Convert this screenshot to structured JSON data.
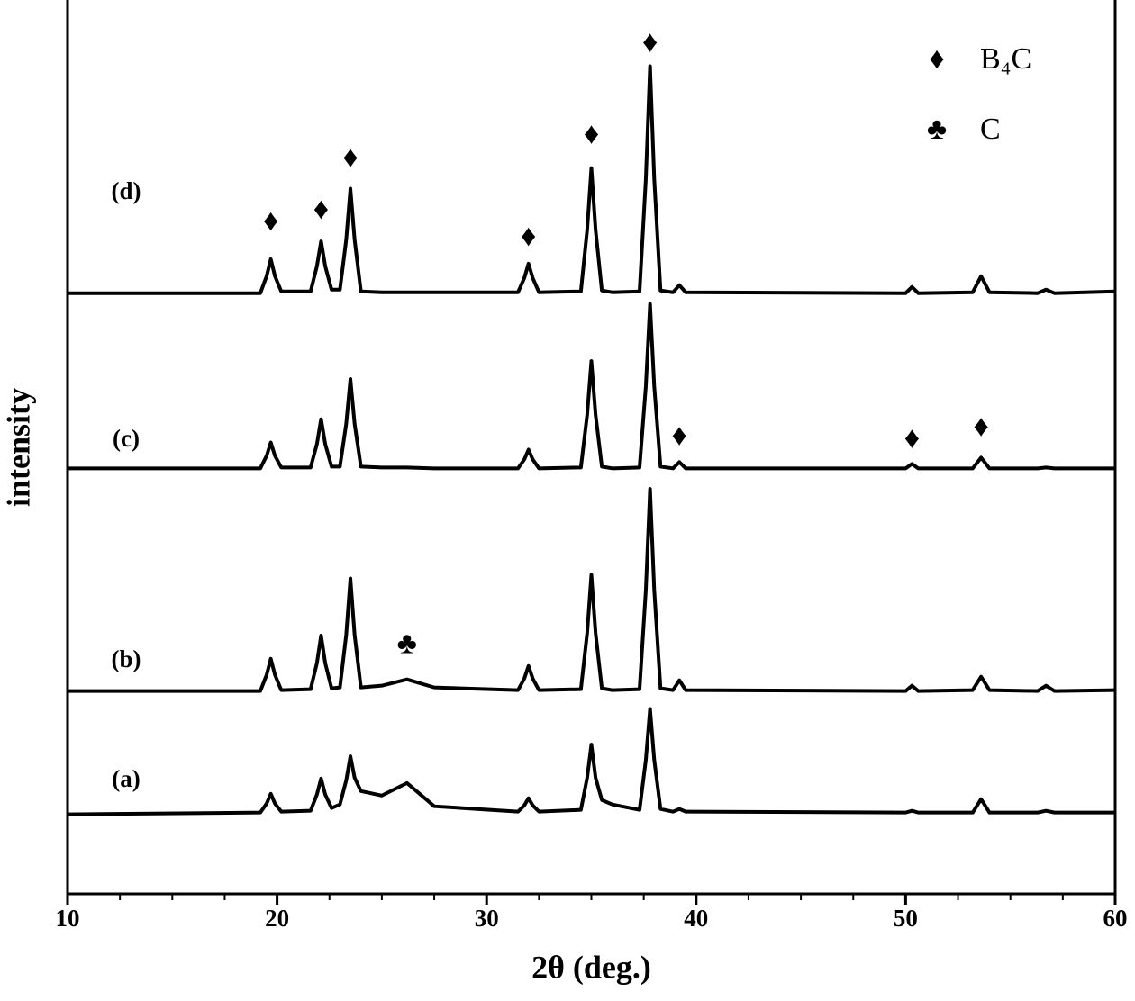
{
  "chart_data": {
    "type": "line",
    "x_label": "2θ (deg.)",
    "y_label": "intensity",
    "xlim": [
      10,
      60
    ],
    "xticks": [
      10,
      20,
      30,
      40,
      50,
      60
    ],
    "xminorticks": [
      12.5,
      15,
      17.5,
      22.5,
      25,
      27.5,
      32.5,
      35,
      37.5,
      42.5,
      45,
      47.5,
      52.5,
      55,
      57.5
    ],
    "ylim": [
      0,
      100
    ],
    "x": [
      10,
      19.2,
      19.5,
      19.7,
      19.9,
      20.2,
      21.6,
      21.9,
      22.1,
      22.3,
      22.6,
      23.0,
      23.3,
      23.5,
      23.7,
      24.0,
      25.0,
      26.2,
      27.5,
      31.5,
      31.8,
      32.0,
      32.2,
      32.5,
      34.5,
      34.8,
      35.0,
      35.2,
      35.5,
      36.0,
      37.3,
      37.6,
      37.8,
      38.0,
      38.3,
      38.9,
      39.2,
      39.5,
      50.0,
      50.3,
      50.6,
      53.2,
      53.6,
      54.0,
      56.3,
      56.7,
      57.1,
      60
    ],
    "series": [
      {
        "name": "(a)",
        "color": "#000000",
        "values": [
          8.9,
          9.1,
          10.1,
          11.2,
          10.1,
          9.2,
          9.3,
          11.1,
          12.9,
          11.1,
          9.6,
          10.0,
          12.7,
          15.4,
          13.0,
          11.5,
          11.0,
          12.4,
          9.8,
          9.2,
          9.9,
          10.7,
          9.9,
          9.2,
          9.4,
          13.0,
          16.7,
          13.0,
          10.5,
          10.0,
          9.4,
          15.0,
          20.7,
          15.0,
          9.5,
          9.2,
          9.5,
          9.2,
          9.1,
          9.3,
          9.1,
          9.1,
          10.6,
          9.1,
          9.1,
          9.3,
          9.1,
          9.1
        ]
      },
      {
        "name": "(b)",
        "color": "#000000",
        "values": [
          22.7,
          22.7,
          24.5,
          26.3,
          24.5,
          22.8,
          22.9,
          25.8,
          28.9,
          25.8,
          23.0,
          23.1,
          29.0,
          35.3,
          29.0,
          23.1,
          23.3,
          24.0,
          23.1,
          22.8,
          24.1,
          25.5,
          24.1,
          22.8,
          22.9,
          29.2,
          35.7,
          29.2,
          23.0,
          22.8,
          22.9,
          34.0,
          45.3,
          34.0,
          23.0,
          22.8,
          23.9,
          22.8,
          22.7,
          23.3,
          22.7,
          22.8,
          24.3,
          22.8,
          22.7,
          23.3,
          22.7,
          22.8
        ]
      },
      {
        "name": "(c)",
        "color": "#000000",
        "values": [
          47.6,
          47.6,
          49.0,
          50.5,
          49.0,
          47.7,
          47.7,
          50.3,
          53.1,
          50.3,
          47.8,
          47.8,
          52.6,
          57.6,
          52.6,
          47.8,
          47.7,
          47.7,
          47.6,
          47.6,
          48.6,
          49.7,
          48.6,
          47.6,
          47.7,
          53.6,
          59.6,
          53.6,
          47.8,
          47.6,
          47.7,
          56.8,
          66.0,
          56.8,
          47.8,
          47.6,
          48.3,
          47.6,
          47.6,
          48.1,
          47.6,
          47.6,
          48.8,
          47.6,
          47.6,
          47.7,
          47.6,
          47.6
        ]
      },
      {
        "name": "(d)",
        "color": "#000000",
        "values": [
          67.2,
          67.2,
          69.1,
          71.0,
          69.1,
          67.4,
          67.4,
          70.2,
          73.0,
          70.2,
          67.6,
          67.6,
          73.2,
          78.9,
          73.2,
          67.4,
          67.3,
          67.3,
          67.3,
          67.3,
          68.9,
          70.5,
          68.9,
          67.3,
          67.4,
          74.3,
          81.2,
          74.3,
          67.5,
          67.3,
          67.4,
          80.0,
          92.6,
          80.0,
          67.5,
          67.3,
          68.1,
          67.3,
          67.2,
          67.9,
          67.2,
          67.3,
          69.1,
          67.3,
          67.2,
          67.6,
          67.2,
          67.4
        ]
      }
    ],
    "legend": [
      {
        "symbol": "♦",
        "label": "B₄C"
      },
      {
        "symbol": "♣",
        "label": "C"
      }
    ],
    "annotations": [
      {
        "text": "♦",
        "x": 19.7,
        "y": 75.0
      },
      {
        "text": "♦",
        "x": 22.1,
        "y": 76.3
      },
      {
        "text": "♦",
        "x": 23.5,
        "y": 82.1
      },
      {
        "text": "♦",
        "x": 32.0,
        "y": 73.3
      },
      {
        "text": "♦",
        "x": 35.0,
        "y": 84.7
      },
      {
        "text": "♦",
        "x": 37.8,
        "y": 95.0
      },
      {
        "text": "♦",
        "x": 39.2,
        "y": 51.0
      },
      {
        "text": "♦",
        "x": 50.3,
        "y": 50.7
      },
      {
        "text": "♦",
        "x": 53.6,
        "y": 52.0
      },
      {
        "text": "♣",
        "x": 26.2,
        "y": 27.7
      }
    ]
  }
}
